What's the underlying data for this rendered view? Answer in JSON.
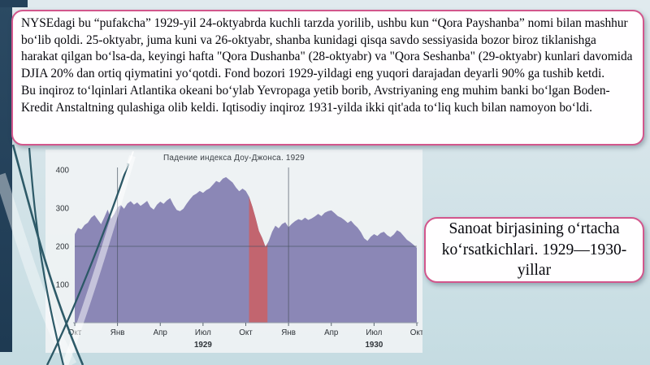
{
  "slide": {
    "background_top": "#e0eaee",
    "background_bottom": "#c5dce2",
    "accent_bar_color": "#24415a",
    "swoosh_color": "#2d5a68",
    "box_border_color": "#d2568c"
  },
  "intro_textbox": {
    "paragraphs": [
      "NYSEdagi bu “pufakcha” 1929-yil 24-oktyabrda kuchli tarzda yorilib, ushbu kun “Qora Payshanba” nomi bilan mashhur boʻlib qoldi. 25-oktyabr, juma kuni va 26-oktyabr, shanba kunidagi qisqa savdo sessiyasida bozor biroz tiklanishga harakat qilgan boʻlsa-da, keyingi hafta \"Qora Dushanba\" (28-oktyabr) va \"Qora Seshanba\" (29-oktyabr) kunlari davomida DJIA 20% dan ortiq qiymatini yoʻqotdi. Fond bozori 1929-yildagi eng yuqori darajadan deyarli 90% ga tushib ketdi.",
      "Bu inqiroz toʻlqinlari Atlantika okeani boʻylab Yevropaga yetib borib, Avstriyaning eng muhim banki boʻlgan Boden-Kredit Anstaltning qulashiga olib keldi. Iqtisodiy inqiroz 1931-yilda ikki qit'ada toʻliq kuch bilan namoyon boʻldi."
    ]
  },
  "caption_textbox": {
    "text": "Sanoat birjasining oʻrtacha koʻrsatkichlari. 1929—1930-yillar"
  },
  "chart_data": {
    "type": "area",
    "title": "Падение индекса Доу-Джонса. 1929",
    "x_axis": {
      "tick_labels": [
        "Окт",
        "Янв",
        "Апр",
        "Июл",
        "Окт",
        "Янв",
        "Апр",
        "Июл",
        "Окт"
      ],
      "tick_months": [
        0,
        3,
        6,
        9,
        12,
        15,
        18,
        21,
        24
      ],
      "year_labels": [
        {
          "text": "1929",
          "month": 9
        },
        {
          "text": "1930",
          "month": 21
        }
      ],
      "span_months": 24
    },
    "y_axis": {
      "ticks": [
        100,
        200,
        300,
        400
      ],
      "max": 453
    },
    "series": [
      {
        "name": "DJIA",
        "values": [
          232,
          248,
          244,
          256,
          262,
          275,
          282,
          270,
          258,
          276,
          296,
          272,
          284,
          302,
          308,
          298,
          312,
          318,
          309,
          315,
          306,
          312,
          319,
          303,
          296,
          309,
          317,
          311,
          320,
          326,
          309,
          295,
          292,
          298,
          311,
          323,
          333,
          338,
          345,
          340,
          347,
          352,
          361,
          371,
          367,
          377,
          381,
          374,
          367,
          354,
          344,
          351,
          345,
          330,
          304,
          274,
          240,
          222,
          198,
          214,
          238,
          254,
          247,
          258,
          263,
          250,
          259,
          266,
          271,
          268,
          275,
          269,
          273,
          278,
          285,
          279,
          288,
          292,
          294,
          287,
          279,
          275,
          269,
          261,
          267,
          257,
          249,
          237,
          221,
          214,
          225,
          232,
          227,
          235,
          238,
          229,
          224,
          231,
          242,
          237,
          227,
          217,
          211,
          204,
          196
        ]
      }
    ],
    "crash_highlight": {
      "start_index": 53,
      "end_index": 58.6
    },
    "gridlines": {
      "vertical_months": [
        3,
        15
      ],
      "horizontal_value": 200
    },
    "colors": {
      "area": "#8b87b6",
      "crash": "#c2656f",
      "plot_background": "rgba(241,244,245,0.88)",
      "gridline": "#47525f",
      "label": "#2e3338"
    }
  }
}
